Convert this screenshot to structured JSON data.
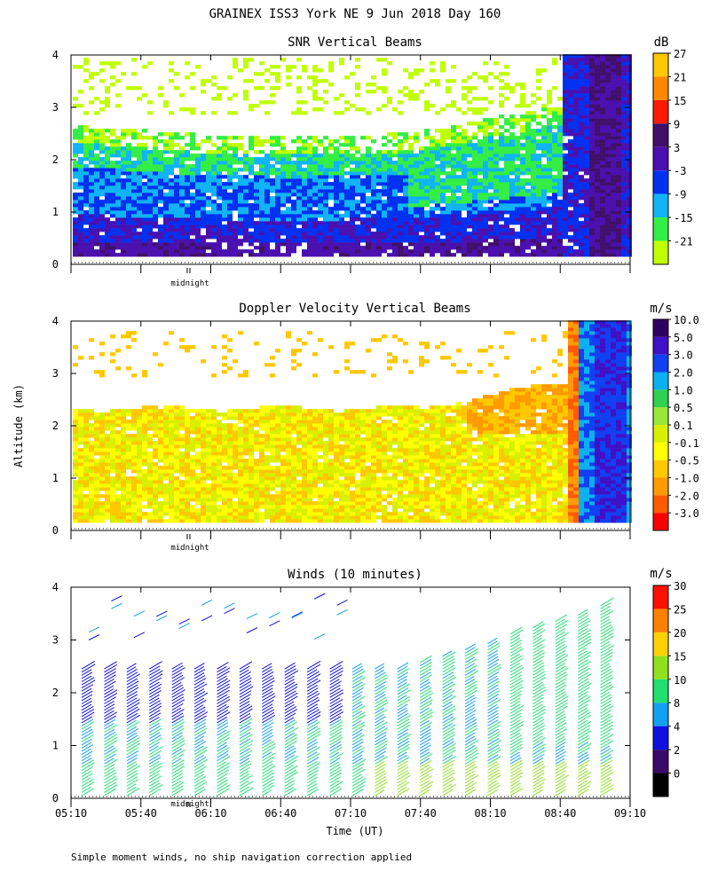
{
  "title": "GRAINEX ISS3 York NE   9 Jun 2018 Day 160",
  "footnote": "Simple moment winds, no ship navigation correction applied",
  "colors": {
    "snr": [
      "#c0ff00",
      "#33ee44",
      "#10b4f5",
      "#0030f0",
      "#4a10b0",
      "#40106a",
      "#ff1a00",
      "#ff8800",
      "#ffc800"
    ],
    "vel": [
      "#ff0000",
      "#ff5a00",
      "#ff9a00",
      "#ffc800",
      "#ffff00",
      "#d8f000",
      "#98e838",
      "#30d050",
      "#0ab0f0",
      "#1040f0",
      "#4010c8",
      "#300060"
    ],
    "wind": [
      "#000000",
      "#3a0a6a",
      "#1010e0",
      "#10a0f0",
      "#20e070",
      "#90e020",
      "#ffd000",
      "#ff8000",
      "#ff1000"
    ]
  },
  "chart_data": [
    {
      "type": "heatmap",
      "title": "SNR Vertical Beams",
      "ylabel": "",
      "xlabel": "",
      "ylim": [
        0,
        4
      ],
      "yticks": [
        "0",
        "1",
        "2",
        "3",
        "4"
      ],
      "colorbar_unit": "dB",
      "colorbar_ticks": [
        "-21",
        "-15",
        "-9",
        "-3",
        "3",
        "9",
        "15",
        "21",
        "27"
      ],
      "annotation": "midnight",
      "xlim": [
        "05:10",
        "09:10"
      ]
    },
    {
      "type": "heatmap",
      "title": "Doppler Velocity Vertical Beams",
      "ylabel": "Altitude (km)",
      "xlabel": "",
      "ylim": [
        0,
        4
      ],
      "yticks": [
        "0",
        "1",
        "2",
        "3",
        "4"
      ],
      "colorbar_unit": "m/s",
      "colorbar_ticks": [
        "-3.0",
        "-2.0",
        "-1.0",
        "-0.5",
        "-0.1",
        "0.1",
        "0.5",
        "1.0",
        "2.0",
        "3.0",
        "5.0",
        "10.0"
      ],
      "annotation": "midnight",
      "xlim": [
        "05:10",
        "09:10"
      ]
    },
    {
      "type": "scatter",
      "title": "Winds (10 minutes)",
      "ylabel": "",
      "xlabel": "Time (UT)",
      "ylim": [
        0,
        4
      ],
      "yticks": [
        "0",
        "1",
        "2",
        "3",
        "4"
      ],
      "xticks": [
        "05:10",
        "05:40",
        "06:10",
        "06:40",
        "07:10",
        "07:40",
        "08:10",
        "08:40",
        "09:10"
      ],
      "colorbar_unit": "m/s",
      "colorbar_ticks": [
        "0",
        "2",
        "4",
        "8",
        "10",
        "15",
        "20",
        "25",
        "30"
      ],
      "annotation": "midnight",
      "profiles_count": 24
    }
  ]
}
